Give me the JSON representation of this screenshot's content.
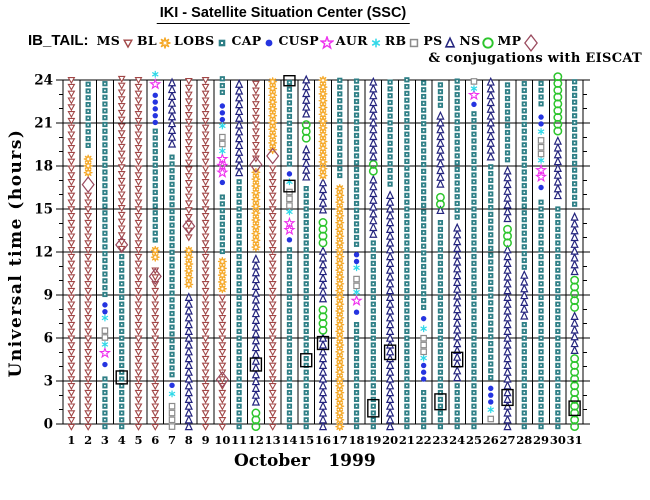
{
  "title": "IKI - Satellite Situation Center (SSC)",
  "legend": {
    "heading": "IB_TAIL:",
    "note": "& conjugations with EISCAT",
    "items": [
      {
        "label": "MS",
        "icon": "triangle-down-icon",
        "sym": "ms",
        "color": "#A14646"
      },
      {
        "label": "BL",
        "icon": "star8-icon",
        "sym": "bl",
        "color": "#F5A827"
      },
      {
        "label": "LOBS",
        "icon": "square-filled-icon",
        "sym": "lobs",
        "color": "#2E7F86"
      },
      {
        "label": "CAP",
        "icon": "circle-filled-icon",
        "sym": "cap",
        "color": "#2534E0"
      },
      {
        "label": "CUSP",
        "icon": "star5-icon",
        "sym": "cusp",
        "color": "#EE30EE"
      },
      {
        "label": "AUR",
        "icon": "asterisk-icon",
        "sym": "aur",
        "color": "#2FD8E8"
      },
      {
        "label": "RB",
        "icon": "square-open-icon",
        "sym": "rb",
        "color": "#8C8C8C"
      },
      {
        "label": "PS",
        "icon": "triangle-up-icon",
        "sym": "ps",
        "color": "#24247E"
      },
      {
        "label": "NS",
        "icon": "circle-open-icon",
        "sym": "ns",
        "color": "#2CC52C"
      },
      {
        "label": "MP",
        "icon": "diamond-open-icon",
        "sym": "mp",
        "color": "#9A4A5E"
      }
    ]
  },
  "chart_data": {
    "type": "scatter",
    "subtype": "satellite-region-timeline",
    "title": "IKI - Satellite Situation Center (SSC)",
    "probe": "IB_TAIL",
    "ylabel": "Universal time (hours)",
    "month_label": "October",
    "year_label": "1999",
    "ylim": [
      0,
      24
    ],
    "yticks": [
      0,
      3,
      6,
      9,
      12,
      15,
      18,
      21,
      24
    ],
    "minor_tick_hours": 1,
    "x_categories": [
      1,
      2,
      3,
      4,
      5,
      6,
      7,
      8,
      9,
      10,
      11,
      12,
      13,
      14,
      15,
      16,
      17,
      18,
      19,
      20,
      21,
      22,
      23,
      24,
      25,
      26,
      27,
      28,
      29,
      30,
      31
    ],
    "grid": true,
    "legend_position": "top",
    "region_codes": {
      "ms": "MS",
      "bl": "BL",
      "lobs": "LOBS",
      "cap": "CAP",
      "cusp": "CUSP",
      "aur": "AUR",
      "rb": "RB",
      "ps": "PS",
      "ns": "NS",
      "mp": "MP",
      "eiscat": "EISCAT conjugation"
    },
    "colors": {
      "ms": "#A14646",
      "bl": "#F5A827",
      "lobs": "#2E7F86",
      "cap": "#2534E0",
      "cusp": "#EE30EE",
      "aur": "#2FD8E8",
      "rb": "#8C8C8C",
      "ps": "#24247E",
      "ns": "#2CC52C",
      "mp": "#9A4A5E",
      "eiscat": "#000000"
    },
    "days": [
      {
        "day": 1,
        "segments": [
          [
            0,
            24,
            "ms"
          ]
        ],
        "mp": [],
        "eiscat": []
      },
      {
        "day": 2,
        "segments": [
          [
            0,
            16.2,
            "ms"
          ],
          [
            17.3,
            19.1,
            "bl"
          ],
          [
            19.2,
            24,
            "lobs"
          ]
        ],
        "mp": [
          16.7
        ],
        "eiscat": []
      },
      {
        "day": 3,
        "segments": [
          [
            0,
            3.8,
            "lobs"
          ],
          [
            3.8,
            4.5,
            "cap"
          ],
          [
            4.6,
            5.3,
            "cusp"
          ],
          [
            5.4,
            5.7,
            "aur"
          ],
          [
            5.8,
            7.2,
            "rb"
          ],
          [
            7.3,
            7.5,
            "aur"
          ],
          [
            7.6,
            8.8,
            "cap"
          ],
          [
            8.8,
            24,
            "lobs"
          ]
        ],
        "mp": [],
        "eiscat": []
      },
      {
        "day": 4,
        "segments": [
          [
            0,
            12,
            "lobs"
          ],
          [
            12,
            24,
            "ms"
          ]
        ],
        "mp": [
          12.5
        ],
        "eiscat": [
          [
            2.8,
            3.7
          ]
        ]
      },
      {
        "day": 5,
        "segments": [
          [
            0,
            24,
            "ms"
          ]
        ],
        "mp": [],
        "eiscat": []
      },
      {
        "day": 6,
        "segments": [
          [
            0,
            11.4,
            "ms"
          ],
          [
            11.4,
            12.6,
            "bl"
          ],
          [
            12.6,
            20.7,
            "lobs"
          ],
          [
            20.8,
            23.2,
            "cap"
          ],
          [
            23.3,
            24.1,
            "cusp"
          ],
          [
            24.3,
            24.5,
            "aur"
          ]
        ],
        "mp": [
          10.3
        ],
        "eiscat": []
      },
      {
        "day": 7,
        "segments": [
          [
            0,
            1.9,
            "rb"
          ],
          [
            2,
            2.2,
            "aur"
          ],
          [
            2.3,
            3.1,
            "cap"
          ],
          [
            3.2,
            19.3,
            "lobs"
          ],
          [
            19.3,
            24,
            "ps"
          ]
        ],
        "mp": [],
        "eiscat": []
      },
      {
        "day": 8,
        "segments": [
          [
            0,
            9.3,
            "ps"
          ],
          [
            9.5,
            12.6,
            "bl"
          ],
          [
            12.8,
            24,
            "ms"
          ]
        ],
        "mp": [
          13.8
        ],
        "eiscat": []
      },
      {
        "day": 9,
        "segments": [
          [
            0,
            24,
            "ms"
          ]
        ],
        "mp": [],
        "eiscat": []
      },
      {
        "day": 10,
        "segments": [
          [
            0,
            9.2,
            "ms"
          ],
          [
            9.2,
            11.8,
            "bl"
          ],
          [
            11.8,
            16.4,
            "lobs"
          ],
          [
            16.5,
            17.2,
            "cap"
          ],
          [
            17.3,
            18.8,
            "cusp"
          ],
          [
            18.9,
            19.2,
            "aur"
          ],
          [
            19.3,
            20.6,
            "rb"
          ],
          [
            20.7,
            20.9,
            "aur"
          ],
          [
            21,
            22.8,
            "cap"
          ],
          [
            22.9,
            24,
            "lobs"
          ]
        ],
        "mp": [
          3.1
        ],
        "eiscat": []
      },
      {
        "day": 11,
        "segments": [
          [
            0,
            17.3,
            "lobs"
          ],
          [
            17.3,
            24,
            "ps"
          ]
        ],
        "mp": [],
        "eiscat": []
      },
      {
        "day": 12,
        "segments": [
          [
            0,
            1.3,
            "ns"
          ],
          [
            1.3,
            12.1,
            "ps"
          ],
          [
            12.1,
            17.9,
            "bl"
          ],
          [
            18.3,
            24,
            "ms"
          ]
        ],
        "mp": [
          18.1
        ],
        "eiscat": [
          [
            3.7,
            4.6
          ]
        ]
      },
      {
        "day": 13,
        "segments": [
          [
            0,
            18.5,
            "ms"
          ],
          [
            18.9,
            24,
            "bl"
          ]
        ],
        "mp": [
          18.7
        ],
        "eiscat": []
      },
      {
        "day": 14,
        "segments": [
          [
            0,
            12.4,
            "lobs"
          ],
          [
            12.5,
            13.2,
            "cap"
          ],
          [
            13.3,
            14.6,
            "cusp"
          ],
          [
            14.7,
            14.9,
            "aur"
          ],
          [
            15,
            16.7,
            "rb"
          ],
          [
            16.8,
            17,
            "aur"
          ],
          [
            17.1,
            17.8,
            "cap"
          ],
          [
            17.9,
            24,
            "lobs"
          ]
        ],
        "mp": [],
        "eiscat": [
          [
            16.2,
            17
          ],
          [
            23.6,
            24.3
          ]
        ]
      },
      {
        "day": 15,
        "segments": [
          [
            0,
            17,
            "lobs"
          ],
          [
            17,
            19.7,
            "ps"
          ],
          [
            19.7,
            21.4,
            "ns"
          ],
          [
            21.4,
            24,
            "ps"
          ]
        ],
        "mp": [],
        "eiscat": [
          [
            4,
            4.9
          ]
        ]
      },
      {
        "day": 16,
        "segments": [
          [
            0,
            6.3,
            "ps"
          ],
          [
            6.3,
            8.5,
            "ns"
          ],
          [
            8.5,
            12.4,
            "ps"
          ],
          [
            12.4,
            14.7,
            "ns"
          ],
          [
            14.7,
            17.1,
            "ps"
          ],
          [
            17.1,
            24,
            "bl"
          ]
        ],
        "mp": [],
        "eiscat": [
          [
            5.2,
            6.1
          ]
        ]
      },
      {
        "day": 17,
        "segments": [
          [
            0,
            17.1,
            "bl"
          ],
          [
            17.1,
            24,
            "lobs"
          ]
        ],
        "mp": [],
        "eiscat": []
      },
      {
        "day": 18,
        "segments": [
          [
            0,
            7.4,
            "lobs"
          ],
          [
            7.5,
            8.1,
            "cap"
          ],
          [
            8.2,
            9,
            "cusp"
          ],
          [
            9.1,
            9.3,
            "aur"
          ],
          [
            9.4,
            10.7,
            "rb"
          ],
          [
            10.8,
            11,
            "aur"
          ],
          [
            11.1,
            12.2,
            "cap"
          ],
          [
            12.3,
            24,
            "lobs"
          ]
        ],
        "mp": [],
        "eiscat": []
      },
      {
        "day": 19,
        "segments": [
          [
            0,
            13,
            "lobs"
          ],
          [
            13,
            17.4,
            "ps"
          ],
          [
            17.4,
            18.4,
            "ns"
          ],
          [
            18.4,
            24,
            "ps"
          ]
        ],
        "mp": [],
        "eiscat": [
          [
            0.5,
            1.7
          ]
        ]
      },
      {
        "day": 20,
        "segments": [
          [
            0,
            16.5,
            "ps"
          ],
          [
            16.5,
            24,
            "lobs"
          ]
        ],
        "mp": [],
        "eiscat": [
          [
            4.5,
            5.5
          ]
        ]
      },
      {
        "day": 21,
        "segments": [
          [
            0,
            24,
            "lobs"
          ]
        ],
        "mp": [],
        "eiscat": []
      },
      {
        "day": 22,
        "segments": [
          [
            0,
            2.9,
            "lobs"
          ],
          [
            2.9,
            4.4,
            "cap"
          ],
          [
            4.5,
            4.7,
            "aur"
          ],
          [
            4.8,
            6.4,
            "rb"
          ],
          [
            6.5,
            6.8,
            "aur"
          ],
          [
            6.9,
            7.8,
            "cap"
          ],
          [
            7.9,
            24,
            "lobs"
          ]
        ],
        "mp": [],
        "eiscat": []
      },
      {
        "day": 23,
        "segments": [
          [
            0,
            14.7,
            "lobs"
          ],
          [
            14.7,
            15.1,
            "ps"
          ],
          [
            15.1,
            16.5,
            "ns"
          ],
          [
            16.5,
            22,
            "ps"
          ],
          [
            22,
            24,
            "lobs"
          ]
        ],
        "mp": [],
        "eiscat": [
          [
            1,
            2.1
          ]
        ]
      },
      {
        "day": 24,
        "segments": [
          [
            0,
            3,
            "lobs"
          ],
          [
            3,
            14.2,
            "ps"
          ],
          [
            14.2,
            24,
            "lobs"
          ]
        ],
        "mp": [],
        "eiscat": [
          [
            4,
            5
          ]
        ]
      },
      {
        "day": 25,
        "segments": [
          [
            0,
            22,
            "lobs"
          ],
          [
            22,
            22.6,
            "cap"
          ],
          [
            22.7,
            23.2,
            "cusp"
          ],
          [
            23.3,
            23.5,
            "aur"
          ],
          [
            23.6,
            24.2,
            "rb"
          ]
        ],
        "mp": [],
        "eiscat": []
      },
      {
        "day": 26,
        "segments": [
          [
            0,
            0.7,
            "rb"
          ],
          [
            0.9,
            1.1,
            "aur"
          ],
          [
            1.3,
            3,
            "cap"
          ],
          [
            3,
            18.4,
            "lobs"
          ],
          [
            18.4,
            24,
            "ps"
          ]
        ],
        "mp": [],
        "eiscat": []
      },
      {
        "day": 27,
        "segments": [
          [
            0,
            12.4,
            "ps"
          ],
          [
            12.4,
            14.1,
            "ns"
          ],
          [
            14.1,
            18.2,
            "ps"
          ],
          [
            18.2,
            24,
            "lobs"
          ]
        ],
        "mp": [],
        "eiscat": [
          [
            1.3,
            2.4
          ]
        ]
      },
      {
        "day": 28,
        "segments": [
          [
            0,
            7.3,
            "lobs"
          ],
          [
            7.3,
            10.7,
            "ps"
          ],
          [
            10.7,
            24,
            "lobs"
          ]
        ],
        "mp": [],
        "eiscat": []
      },
      {
        "day": 29,
        "segments": [
          [
            0,
            16,
            "lobs"
          ],
          [
            16.1,
            16.9,
            "cap"
          ],
          [
            17,
            18.2,
            "cusp"
          ],
          [
            18.3,
            18.5,
            "aur"
          ],
          [
            18.6,
            20.2,
            "rb"
          ],
          [
            20.3,
            20.5,
            "aur"
          ],
          [
            20.7,
            22.1,
            "cap"
          ],
          [
            22.1,
            24,
            "lobs"
          ]
        ],
        "mp": [],
        "eiscat": []
      },
      {
        "day": 30,
        "segments": [
          [
            0,
            15.7,
            "lobs"
          ],
          [
            15.7,
            20,
            "ps"
          ],
          [
            20.2,
            24.4,
            "ns"
          ]
        ],
        "mp": [],
        "eiscat": []
      },
      {
        "day": 31,
        "segments": [
          [
            0,
            4.9,
            "ns"
          ],
          [
            4.9,
            7.9,
            "ps"
          ],
          [
            7.9,
            10.4,
            "ns"
          ],
          [
            10.4,
            15.1,
            "ps"
          ],
          [
            15.1,
            24,
            "lobs"
          ]
        ],
        "mp": [],
        "eiscat": [
          [
            0.6,
            1.6
          ]
        ]
      }
    ]
  }
}
